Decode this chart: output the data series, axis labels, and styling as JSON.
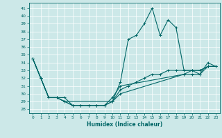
{
  "title": "",
  "xlabel": "Humidex (Indice chaleur)",
  "bg_color": "#cce8e8",
  "line_color": "#006666",
  "xlim": [
    -0.5,
    23.5
  ],
  "ylim": [
    27.5,
    41.7
  ],
  "xticks": [
    0,
    1,
    2,
    3,
    4,
    5,
    6,
    7,
    8,
    9,
    10,
    11,
    12,
    13,
    14,
    15,
    16,
    17,
    18,
    19,
    20,
    21,
    22,
    23
  ],
  "yticks": [
    28,
    29,
    30,
    31,
    32,
    33,
    34,
    35,
    36,
    37,
    38,
    39,
    40,
    41
  ],
  "lines": [
    {
      "x": [
        0,
        1,
        2,
        3,
        4,
        10,
        11,
        12,
        13,
        14,
        15,
        16,
        17,
        18,
        19,
        20,
        21,
        22,
        23
      ],
      "y": [
        34.5,
        32,
        29.5,
        29.5,
        29,
        29,
        31.5,
        37,
        37.5,
        39,
        41,
        37.5,
        39.5,
        38.5,
        33,
        33,
        32.5,
        34,
        33.5
      ]
    },
    {
      "x": [
        0,
        1,
        2,
        3,
        4,
        5,
        6,
        7,
        8,
        9,
        10,
        11,
        12,
        13,
        14,
        15,
        16,
        17,
        18,
        19,
        20,
        21,
        22,
        23
      ],
      "y": [
        34.5,
        32,
        29.5,
        29.5,
        29,
        28.5,
        28.5,
        28.5,
        28.5,
        28.5,
        29,
        30.5,
        31,
        31.5,
        32,
        32.5,
        32.5,
        33,
        33,
        33,
        33,
        33,
        33.5,
        33.5
      ]
    },
    {
      "x": [
        0,
        1,
        2,
        3,
        4,
        5,
        6,
        7,
        8,
        9,
        10,
        11,
        19,
        20,
        21,
        22,
        23
      ],
      "y": [
        34.5,
        32,
        29.5,
        29.5,
        29,
        28.5,
        28.5,
        28.5,
        28.5,
        28.5,
        29,
        30,
        32.5,
        33,
        33,
        33.5,
        33.5
      ]
    },
    {
      "x": [
        0,
        1,
        2,
        3,
        4,
        5,
        6,
        7,
        8,
        9,
        10,
        11,
        19,
        20,
        21,
        22,
        23
      ],
      "y": [
        34.5,
        32,
        29.5,
        29.5,
        29.5,
        28.5,
        28.5,
        28.5,
        28.5,
        28.5,
        29.5,
        31,
        32.5,
        32.5,
        32.5,
        33.5,
        33.5
      ]
    }
  ]
}
